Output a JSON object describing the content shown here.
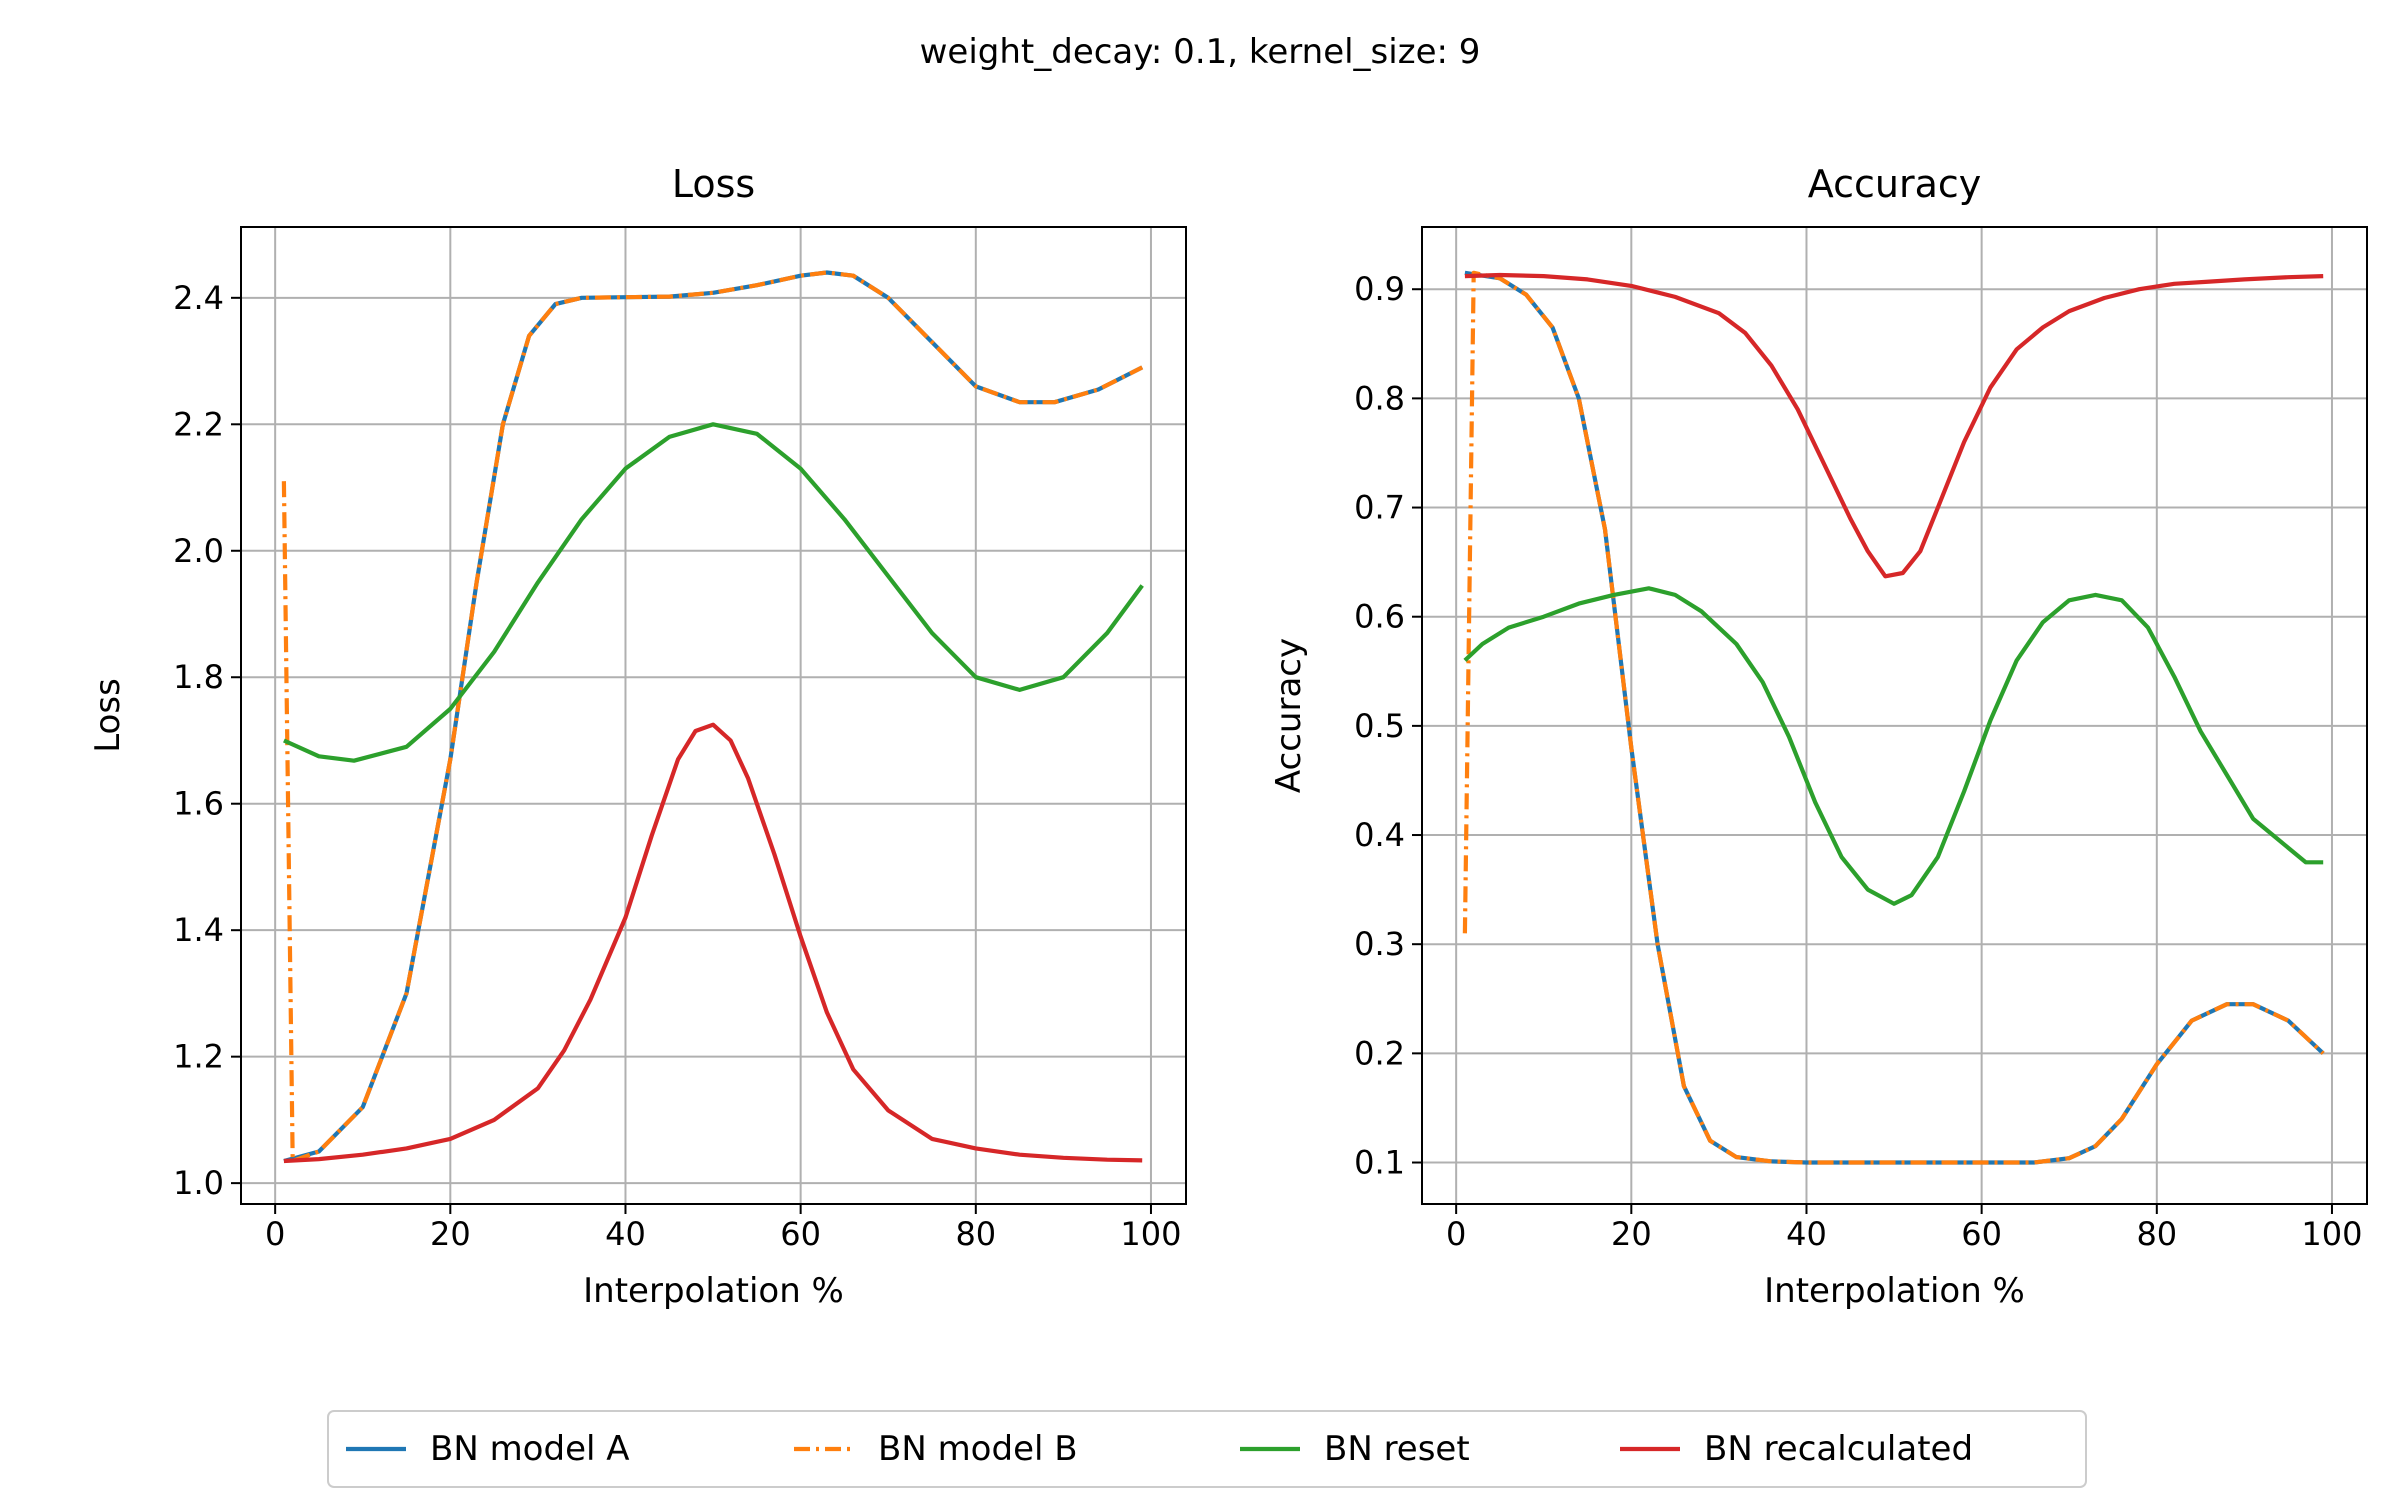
{
  "figure": {
    "suptitle": "weight_decay: 0.1, kernel_size: 9"
  },
  "legend": {
    "placement": "bottom-center",
    "entries": [
      {
        "label": "BN model A",
        "color": "#1f77b4",
        "dash": "solid"
      },
      {
        "label": "BN model B",
        "color": "#ff7f0e",
        "dash": "dashdot"
      },
      {
        "label": "BN reset",
        "color": "#2ca02c",
        "dash": "solid"
      },
      {
        "label": "BN recalculated",
        "color": "#d62728",
        "dash": "solid"
      }
    ]
  },
  "chart_data": [
    {
      "type": "line",
      "title": "Loss",
      "xlabel": "Interpolation %",
      "ylabel": "Loss",
      "xlim": [
        -3.9,
        104
      ],
      "ylim": [
        0.967,
        2.512
      ],
      "xticks": [
        0,
        20,
        40,
        60,
        80,
        100
      ],
      "xtick_labels": [
        "0",
        "20",
        "40",
        "60",
        "80",
        "100"
      ],
      "yticks": [
        1.0,
        1.2,
        1.4,
        1.6,
        1.8,
        2.0,
        2.2,
        2.4
      ],
      "ytick_labels": [
        "1.0",
        "1.2",
        "1.4",
        "1.6",
        "1.8",
        "2.0",
        "2.2",
        "2.4"
      ],
      "grid": true,
      "series": [
        {
          "name": "BN model A",
          "color": "#1f77b4",
          "dash": "solid",
          "x": [
            1,
            5,
            10,
            15,
            20,
            23,
            26,
            29,
            32,
            35,
            40,
            45,
            50,
            55,
            60,
            63,
            66,
            70,
            75,
            80,
            85,
            89,
            94,
            99
          ],
          "y": [
            1.035,
            1.05,
            1.12,
            1.3,
            1.67,
            1.95,
            2.2,
            2.34,
            2.39,
            2.4,
            2.401,
            2.402,
            2.408,
            2.42,
            2.435,
            2.44,
            2.435,
            2.4,
            2.33,
            2.26,
            2.235,
            2.235,
            2.255,
            2.29
          ]
        },
        {
          "name": "BN model B",
          "color": "#ff7f0e",
          "dash": "dashdot",
          "x": [
            1,
            2,
            5,
            10,
            15,
            20,
            23,
            26,
            29,
            32,
            35,
            40,
            45,
            50,
            55,
            60,
            63,
            66,
            70,
            75,
            80,
            85,
            89,
            94,
            99
          ],
          "y": [
            2.11,
            1.035,
            1.05,
            1.12,
            1.3,
            1.67,
            1.95,
            2.2,
            2.34,
            2.39,
            2.4,
            2.401,
            2.402,
            2.408,
            2.42,
            2.435,
            2.44,
            2.435,
            2.4,
            2.33,
            2.26,
            2.235,
            2.235,
            2.255,
            2.29
          ]
        },
        {
          "name": "BN reset",
          "color": "#2ca02c",
          "dash": "solid",
          "x": [
            1,
            5,
            9,
            15,
            20,
            25,
            30,
            35,
            40,
            45,
            50,
            55,
            60,
            65,
            70,
            75,
            80,
            85,
            90,
            95,
            99
          ],
          "y": [
            1.7,
            1.675,
            1.668,
            1.69,
            1.75,
            1.84,
            1.95,
            2.05,
            2.13,
            2.18,
            2.2,
            2.185,
            2.13,
            2.05,
            1.96,
            1.87,
            1.8,
            1.78,
            1.8,
            1.87,
            1.945
          ]
        },
        {
          "name": "BN recalculated",
          "color": "#d62728",
          "dash": "solid",
          "x": [
            1,
            5,
            10,
            15,
            20,
            25,
            30,
            33,
            36,
            40,
            43,
            46,
            48,
            50,
            52,
            54,
            57,
            60,
            63,
            66,
            70,
            75,
            80,
            85,
            90,
            95,
            99
          ],
          "y": [
            1.035,
            1.038,
            1.045,
            1.055,
            1.07,
            1.1,
            1.15,
            1.21,
            1.29,
            1.42,
            1.55,
            1.67,
            1.715,
            1.725,
            1.7,
            1.64,
            1.52,
            1.39,
            1.27,
            1.18,
            1.115,
            1.07,
            1.055,
            1.045,
            1.04,
            1.037,
            1.036
          ]
        }
      ]
    },
    {
      "type": "line",
      "title": "Accuracy",
      "xlabel": "Interpolation %",
      "ylabel": "Accuracy",
      "xlim": [
        -3.9,
        104
      ],
      "ylim": [
        0.062,
        0.957
      ],
      "xticks": [
        0,
        20,
        40,
        60,
        80,
        100
      ],
      "xtick_labels": [
        "0",
        "20",
        "40",
        "60",
        "80",
        "100"
      ],
      "yticks": [
        0.1,
        0.2,
        0.3,
        0.4,
        0.5,
        0.6,
        0.7,
        0.8,
        0.9
      ],
      "ytick_labels": [
        "0.1",
        "0.2",
        "0.3",
        "0.4",
        "0.5",
        "0.6",
        "0.7",
        "0.8",
        "0.9"
      ],
      "grid": true,
      "series": [
        {
          "name": "BN model A",
          "color": "#1f77b4",
          "dash": "solid",
          "x": [
            1,
            5,
            8,
            11,
            14,
            17,
            20,
            23,
            26,
            29,
            32,
            36,
            40,
            50,
            60,
            66,
            70,
            73,
            76,
            80,
            84,
            88,
            91,
            95,
            99
          ],
          "y": [
            0.915,
            0.91,
            0.895,
            0.865,
            0.8,
            0.68,
            0.48,
            0.3,
            0.17,
            0.12,
            0.105,
            0.101,
            0.1,
            0.1,
            0.1,
            0.1,
            0.104,
            0.115,
            0.14,
            0.19,
            0.23,
            0.245,
            0.245,
            0.23,
            0.2
          ]
        },
        {
          "name": "BN model B",
          "color": "#ff7f0e",
          "dash": "dashdot",
          "x": [
            1,
            2,
            5,
            8,
            11,
            14,
            17,
            20,
            23,
            26,
            29,
            32,
            36,
            40,
            50,
            60,
            66,
            70,
            73,
            76,
            80,
            84,
            88,
            91,
            95,
            99
          ],
          "y": [
            0.31,
            0.915,
            0.91,
            0.895,
            0.865,
            0.8,
            0.68,
            0.48,
            0.3,
            0.17,
            0.12,
            0.105,
            0.101,
            0.1,
            0.1,
            0.1,
            0.1,
            0.104,
            0.115,
            0.14,
            0.19,
            0.23,
            0.245,
            0.245,
            0.23,
            0.2
          ]
        },
        {
          "name": "BN reset",
          "color": "#2ca02c",
          "dash": "solid",
          "x": [
            1,
            3,
            6,
            10,
            14,
            18,
            22,
            25,
            28,
            32,
            35,
            38,
            41,
            44,
            47,
            50,
            52,
            55,
            58,
            61,
            64,
            67,
            70,
            73,
            76,
            79,
            82,
            85,
            88,
            91,
            94,
            97,
            99
          ],
          "y": [
            0.56,
            0.575,
            0.59,
            0.6,
            0.612,
            0.62,
            0.626,
            0.62,
            0.605,
            0.575,
            0.54,
            0.49,
            0.43,
            0.38,
            0.35,
            0.337,
            0.345,
            0.38,
            0.44,
            0.505,
            0.56,
            0.595,
            0.615,
            0.62,
            0.615,
            0.59,
            0.545,
            0.495,
            0.455,
            0.415,
            0.395,
            0.375,
            0.375
          ]
        },
        {
          "name": "BN recalculated",
          "color": "#d62728",
          "dash": "solid",
          "x": [
            1,
            5,
            10,
            15,
            20,
            25,
            30,
            33,
            36,
            39,
            42,
            45,
            47,
            49,
            51,
            53,
            55,
            58,
            61,
            64,
            67,
            70,
            74,
            78,
            82,
            86,
            90,
            95,
            99
          ],
          "y": [
            0.912,
            0.913,
            0.912,
            0.909,
            0.903,
            0.893,
            0.878,
            0.86,
            0.83,
            0.79,
            0.74,
            0.69,
            0.66,
            0.637,
            0.64,
            0.66,
            0.7,
            0.76,
            0.81,
            0.845,
            0.865,
            0.88,
            0.892,
            0.9,
            0.905,
            0.907,
            0.909,
            0.911,
            0.912
          ]
        }
      ]
    }
  ]
}
